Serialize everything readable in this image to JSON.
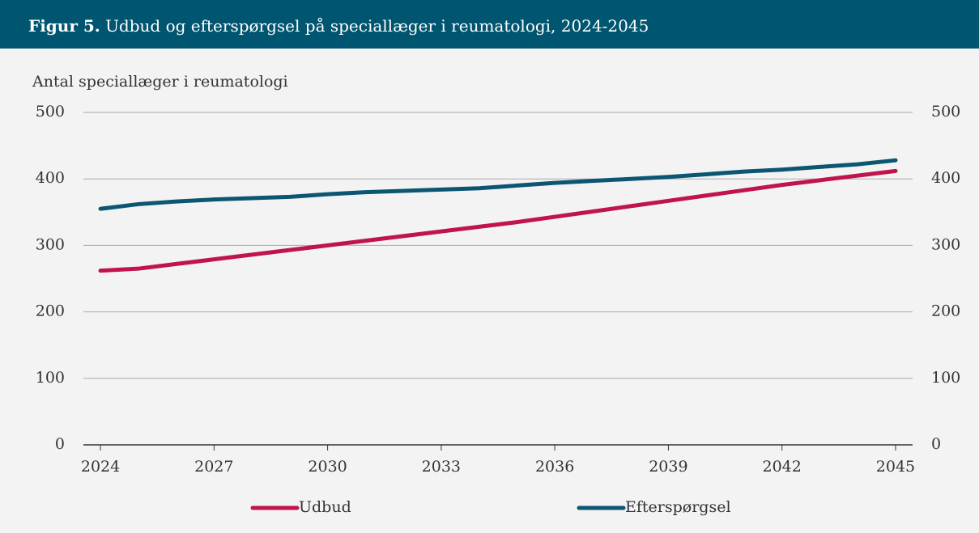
{
  "header": {
    "label": "Figur 5.",
    "title": "Udbud og efterspørgsel på speciallæger i reumatologi, 2024-2045"
  },
  "chart_data": {
    "type": "line",
    "ylabel": "Antal speciallæger i reumatologi",
    "x": [
      2024,
      2025,
      2026,
      2027,
      2028,
      2029,
      2030,
      2031,
      2032,
      2033,
      2034,
      2035,
      2036,
      2037,
      2038,
      2039,
      2040,
      2041,
      2042,
      2043,
      2044,
      2045
    ],
    "xlim": [
      2023.55,
      2045.45
    ],
    "xticks": [
      2024,
      2027,
      2030,
      2033,
      2036,
      2039,
      2042,
      2045
    ],
    "ylim": [
      0,
      500
    ],
    "yticks": [
      0,
      100,
      200,
      300,
      400,
      500
    ],
    "y2lim": [
      0,
      500
    ],
    "y2ticks": [
      0,
      100,
      200,
      300,
      400,
      500
    ],
    "grid": true,
    "series": [
      {
        "name": "Udbud",
        "color": "#c0144b",
        "values": [
          262,
          265,
          272,
          279,
          286,
          293,
          300,
          307,
          314,
          321,
          328,
          335,
          343,
          351,
          359,
          367,
          375,
          383,
          391,
          398,
          405,
          412
        ]
      },
      {
        "name": "Efterspørgsel",
        "color": "#0b5670",
        "values": [
          355,
          362,
          366,
          369,
          371,
          373,
          377,
          380,
          382,
          384,
          386,
          390,
          394,
          397,
          400,
          403,
          407,
          411,
          414,
          418,
          422,
          428
        ]
      }
    ]
  }
}
